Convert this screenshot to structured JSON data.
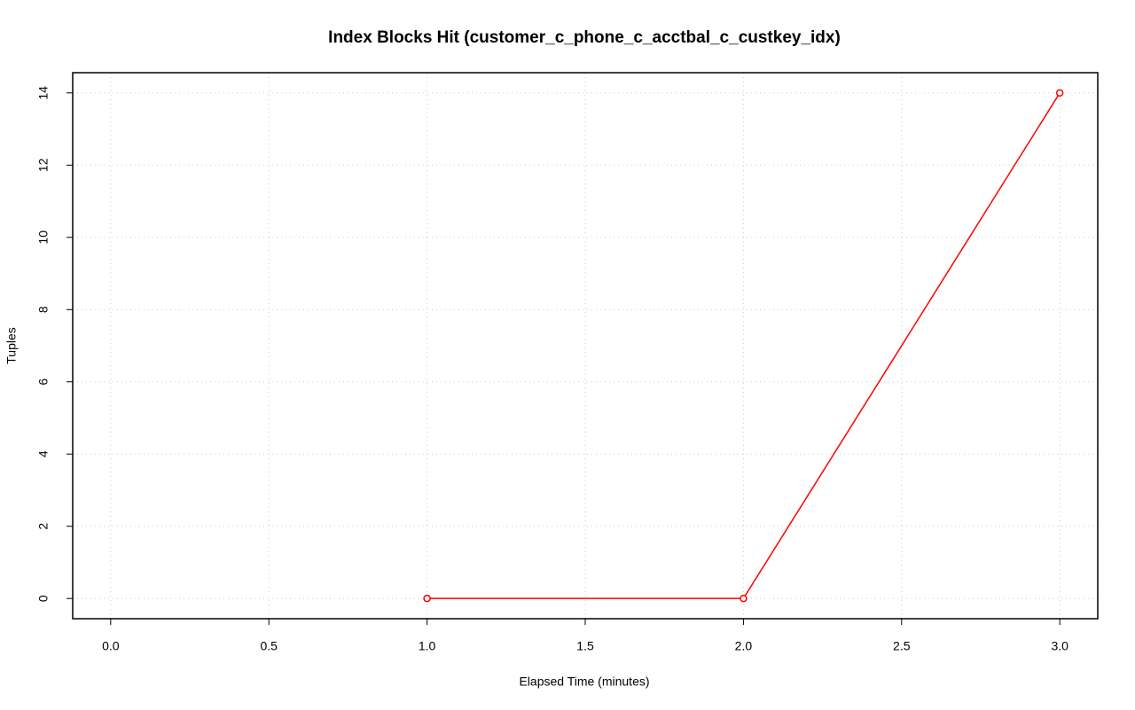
{
  "chart_data": {
    "type": "line",
    "title": "Index Blocks Hit (customer_c_phone_c_acctbal_c_custkey_idx)",
    "x_label": "Elapsed Time (minutes)",
    "y_label": "Tuples",
    "x": [
      1,
      2,
      3
    ],
    "values": [
      0,
      0,
      14
    ],
    "color": "#ff0000",
    "markers": "open-circle",
    "xlim": [
      -0.12,
      3.12
    ],
    "ylim": [
      -0.56,
      14.56
    ],
    "xticks": [
      {
        "value": 0,
        "label": "0.0"
      },
      {
        "value": 0.5,
        "label": "0.5"
      },
      {
        "value": 1,
        "label": "1.0"
      },
      {
        "value": 1.5,
        "label": "1.5"
      },
      {
        "value": 2,
        "label": "2.0"
      },
      {
        "value": 2.5,
        "label": "2.5"
      },
      {
        "value": 3,
        "label": "3.0"
      }
    ],
    "yticks": [
      0,
      2,
      4,
      6,
      8,
      10,
      12,
      14
    ],
    "grid": true
  }
}
